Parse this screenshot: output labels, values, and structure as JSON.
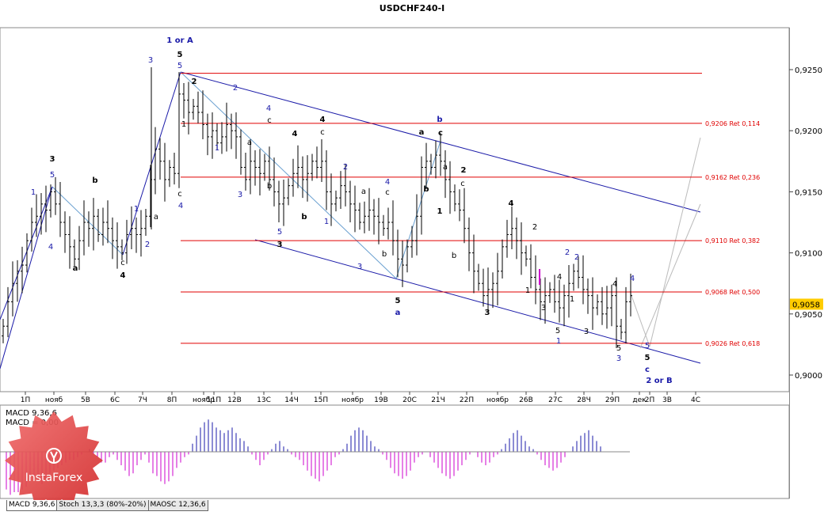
{
  "chart_data": {
    "type": "candlestick",
    "title": "USDCHF240-I",
    "y_ticks": [
      "0,9250",
      "0,9200",
      "0,9150",
      "0,9100",
      "0,9050",
      "0,9000"
    ],
    "y_values": [
      0.925,
      0.92,
      0.915,
      0.91,
      0.905,
      0.9
    ],
    "ylim": [
      0.8992,
      0.9305
    ],
    "current_price": "0,9058",
    "x_labels": [
      "1П",
      "нояб",
      "5В",
      "6С",
      "7Ч",
      "8П",
      "ноябр",
      "11П",
      "12В",
      "13С",
      "14Ч",
      "15П",
      "ноябр",
      "19В",
      "20С",
      "21Ч",
      "22П",
      "ноябр",
      "26В",
      "27С",
      "28Ч",
      "29П",
      "дек",
      "2П",
      "3В",
      "4С"
    ],
    "fib_levels": [
      {
        "price": 0.9247,
        "label": ""
      },
      {
        "price": 0.9206,
        "label": "0,9206 Ret 0,114"
      },
      {
        "price": 0.9162,
        "label": "0,9162 Ret 0,236"
      },
      {
        "price": 0.911,
        "label": "0,9110 Ret 0,382"
      },
      {
        "price": 0.9068,
        "label": "0,9068 Ret 0,500"
      },
      {
        "price": 0.9026,
        "label": "0,9026 Ret 0,618"
      }
    ],
    "wave_labels": [
      "1 or A",
      "5",
      "5",
      "3",
      "2",
      "2",
      "4",
      "c",
      "b",
      "4",
      "c",
      "a",
      "3",
      "5",
      "3",
      "4",
      "c",
      "b",
      "2",
      "1",
      "a",
      "5",
      "3",
      "a",
      "b",
      "3",
      "4",
      "c",
      "b",
      "a",
      "2",
      "1",
      "b",
      "3",
      "5",
      "a",
      "4",
      "2",
      "b",
      "4",
      "1",
      "3",
      "2",
      "4",
      "2",
      "1",
      "3",
      "5",
      "1",
      "3",
      "4",
      "2",
      "3",
      "5",
      "a",
      "2 or B",
      "c",
      "5"
    ],
    "indicator": {
      "name": "MACD 9,36,6",
      "value_label": "MACD = 0,00",
      "values": [
        -14,
        -16,
        -15,
        -15,
        -14,
        -13,
        -11,
        -9,
        -10,
        -12,
        -10,
        -8,
        -7,
        -6,
        -5,
        -4,
        -3,
        -3,
        -2,
        -1,
        0,
        1,
        -1,
        -2,
        -4,
        -4,
        -2,
        -1,
        -3,
        -5,
        -7,
        -9,
        -8,
        -5,
        -3,
        -1,
        -4,
        -8,
        -9,
        -11,
        -12,
        -11,
        -9,
        -6,
        -4,
        -2,
        -1,
        3,
        6,
        9,
        11,
        12,
        11,
        9,
        8,
        7,
        8,
        9,
        7,
        5,
        4,
        2,
        -1,
        -3,
        -5,
        -3,
        -1,
        1,
        3,
        4,
        2,
        1,
        -1,
        -2,
        -3,
        -5,
        -7,
        -9,
        -10,
        -11,
        -9,
        -7,
        -5,
        -2,
        -1,
        1,
        3,
        6,
        8,
        9,
        8,
        6,
        4,
        2,
        1,
        -1,
        -3,
        -6,
        -8,
        -9,
        -10,
        -9,
        -7,
        -4,
        -2,
        -1,
        0,
        -2,
        -4,
        -6,
        -8,
        -9,
        -10,
        -9,
        -7,
        -5,
        -3,
        -1,
        0,
        -2,
        -4,
        -5,
        -4,
        -2,
        -1,
        1,
        3,
        5,
        7,
        8,
        6,
        4,
        2,
        1,
        -1,
        -3,
        -5,
        -6,
        -7,
        -6,
        -4,
        -2,
        0,
        2,
        4,
        6,
        7,
        8,
        6,
        4,
        2,
        0,
        0,
        0
      ]
    },
    "indicator_tabs": [
      "MACD 9,36,6",
      "Stoch 13,3,3 (80%-20%)",
      "MAOSC 12,36,6"
    ],
    "watermark": "InstaForex"
  }
}
